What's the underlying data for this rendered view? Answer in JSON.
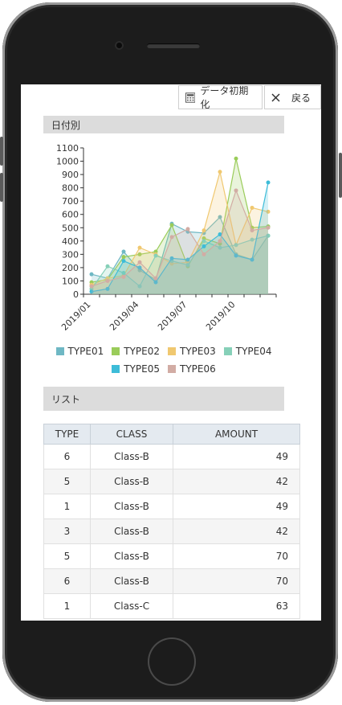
{
  "toolbar": {
    "init_label": "データ初期化",
    "back_label": "戻る",
    "init_icon": "calculator-icon",
    "back_icon": "close-icon"
  },
  "sections": {
    "by_date": "日付別",
    "list": "リスト"
  },
  "chart_data": {
    "type": "area",
    "x": [
      "2019/01",
      "2019/02",
      "2019/03",
      "2019/04",
      "2019/05",
      "2019/06",
      "2019/07",
      "2019/08",
      "2019/09",
      "2019/10",
      "2019/11",
      "2019/12"
    ],
    "x_tick_labels": [
      "2019/01",
      "2019/04",
      "2019/07",
      "2019/10"
    ],
    "ylim": [
      0,
      1100
    ],
    "y_ticks": [
      0,
      100,
      200,
      300,
      400,
      500,
      600,
      700,
      800,
      900,
      1000,
      1100
    ],
    "series": [
      {
        "name": "TYPE01",
        "color": "#6fb8c4",
        "values": [
          150,
          120,
          320,
          180,
          110,
          530,
          470,
          460,
          580,
          300,
          260,
          440
        ]
      },
      {
        "name": "TYPE02",
        "color": "#9acc5a",
        "values": [
          90,
          110,
          280,
          300,
          320,
          520,
          210,
          420,
          380,
          1020,
          500,
          510
        ]
      },
      {
        "name": "TYPE03",
        "color": "#f0c870",
        "values": [
          70,
          120,
          140,
          350,
          300,
          230,
          240,
          480,
          920,
          370,
          650,
          620
        ]
      },
      {
        "name": "TYPE04",
        "color": "#86d0b8",
        "values": [
          40,
          210,
          160,
          60,
          290,
          250,
          220,
          400,
          350,
          370,
          410,
          440
        ]
      },
      {
        "name": "TYPE05",
        "color": "#3dbcd8",
        "values": [
          20,
          40,
          250,
          200,
          90,
          270,
          260,
          360,
          450,
          290,
          260,
          840
        ]
      },
      {
        "name": "TYPE06",
        "color": "#d2aca4",
        "values": [
          60,
          100,
          130,
          240,
          120,
          430,
          490,
          300,
          400,
          780,
          480,
          500
        ]
      }
    ]
  },
  "table": {
    "headers": [
      "TYPE",
      "CLASS",
      "AMOUNT"
    ],
    "rows": [
      [
        "6",
        "Class-B",
        "49"
      ],
      [
        "5",
        "Class-B",
        "42"
      ],
      [
        "1",
        "Class-B",
        "49"
      ],
      [
        "3",
        "Class-B",
        "42"
      ],
      [
        "5",
        "Class-B",
        "70"
      ],
      [
        "6",
        "Class-B",
        "70"
      ],
      [
        "1",
        "Class-C",
        "63"
      ]
    ]
  }
}
